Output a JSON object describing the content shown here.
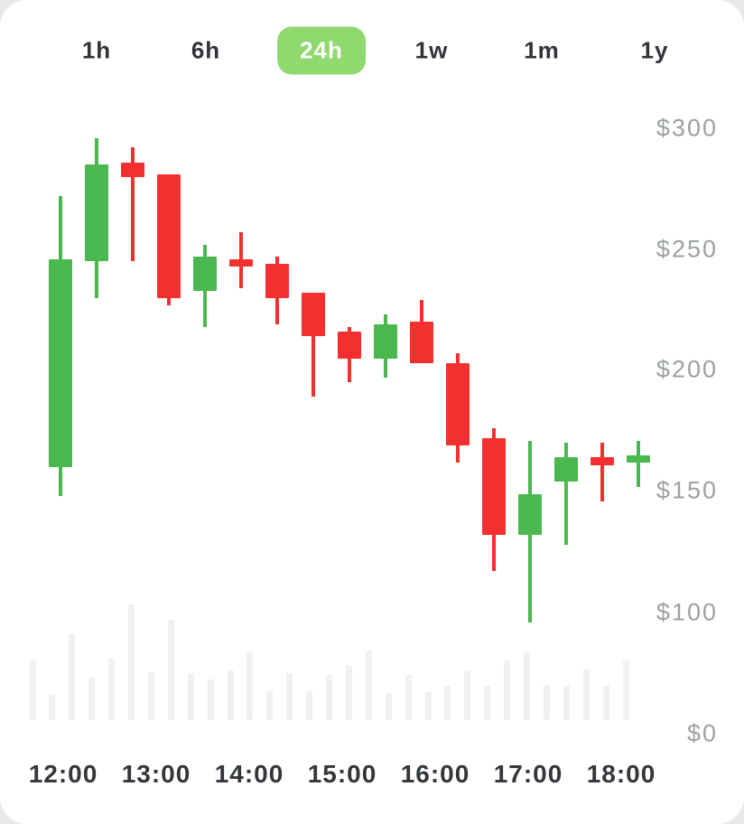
{
  "timeframe_tabs": {
    "items": [
      {
        "label": "1h",
        "active": false
      },
      {
        "label": "6h",
        "active": false
      },
      {
        "label": "24h",
        "active": true
      },
      {
        "label": "1w",
        "active": false
      },
      {
        "label": "1m",
        "active": false
      },
      {
        "label": "1y",
        "active": false
      }
    ]
  },
  "chart_data": {
    "type": "candlestick",
    "title": "",
    "currency_prefix": "$",
    "y_axis": {
      "tick_labels": [
        "$300",
        "$250",
        "$200",
        "$150",
        "$100",
        "$0"
      ],
      "tick_values": [
        300,
        250,
        200,
        150,
        100,
        0
      ],
      "position": "right"
    },
    "x_axis": {
      "tick_labels": [
        "12:00",
        "13:00",
        "14:00",
        "15:00",
        "16:00",
        "17:00",
        "18:00"
      ]
    },
    "candles": [
      {
        "open": 160,
        "high": 272,
        "low": 148,
        "close": 246,
        "direction": "up"
      },
      {
        "open": 245,
        "high": 296,
        "low": 230,
        "close": 285,
        "direction": "up"
      },
      {
        "open": 286,
        "high": 292,
        "low": 245,
        "close": 280,
        "direction": "down"
      },
      {
        "open": 281,
        "high": 281,
        "low": 227,
        "close": 230,
        "direction": "down"
      },
      {
        "open": 233,
        "high": 252,
        "low": 218,
        "close": 247,
        "direction": "up"
      },
      {
        "open": 246,
        "high": 257,
        "low": 234,
        "close": 243,
        "direction": "down"
      },
      {
        "open": 244,
        "high": 247,
        "low": 219,
        "close": 230,
        "direction": "down"
      },
      {
        "open": 232,
        "high": 232,
        "low": 189,
        "close": 214,
        "direction": "down"
      },
      {
        "open": 216,
        "high": 218,
        "low": 195,
        "close": 205,
        "direction": "down"
      },
      {
        "open": 205,
        "high": 223,
        "low": 197,
        "close": 219,
        "direction": "up"
      },
      {
        "open": 220,
        "high": 229,
        "low": 203,
        "close": 203,
        "direction": "down"
      },
      {
        "open": 203,
        "high": 207,
        "low": 162,
        "close": 169,
        "direction": "down"
      },
      {
        "open": 172,
        "high": 176,
        "low": 117,
        "close": 132,
        "direction": "down"
      },
      {
        "open": 132,
        "high": 171,
        "low": 96,
        "close": 149,
        "direction": "up"
      },
      {
        "open": 154,
        "high": 170,
        "low": 128,
        "close": 164,
        "direction": "up"
      },
      {
        "open": 164,
        "high": 170,
        "low": 146,
        "close": 161,
        "direction": "down"
      },
      {
        "open": 162,
        "high": 171,
        "low": 152,
        "close": 165,
        "direction": "up"
      }
    ],
    "volume": [
      66,
      28,
      96,
      48,
      68,
      128,
      53,
      111,
      52,
      45,
      55,
      75,
      32,
      52,
      32,
      50,
      60,
      77,
      30,
      50,
      31,
      38,
      55,
      38,
      66,
      75,
      39,
      38,
      56,
      38,
      66
    ],
    "colors": {
      "up": "#4ab84f",
      "down": "#f3302f",
      "volume_bar": "#f1f1f2",
      "axis_label": "#9ca1a4",
      "time_label": "#33373b",
      "tab_active_bg": "#8fd96e",
      "tab_active_text": "#ffffff"
    }
  }
}
